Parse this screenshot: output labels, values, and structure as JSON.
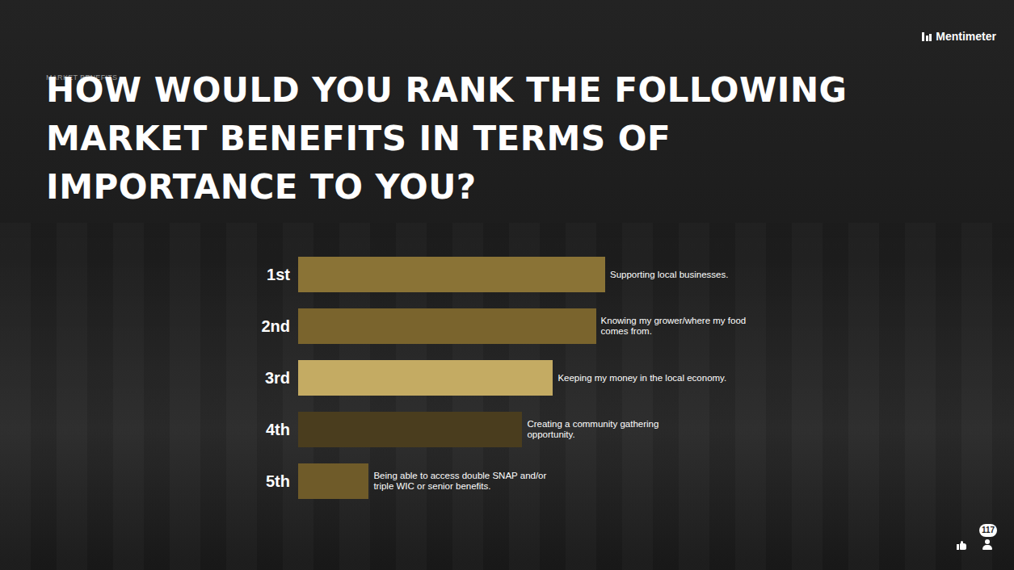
{
  "chart_data": {
    "type": "bar",
    "orientation": "horizontal",
    "title": "HOW WOULD YOU RANK THE FOLLOWING MARKET BENEFITS IN TERMS OF IMPORTANCE TO YOU?",
    "categories": [
      "1st",
      "2nd",
      "3rd",
      "4th",
      "5th"
    ],
    "item_labels": [
      "Supporting local businesses.",
      "Knowing my grower/where my food comes from.",
      "Keeping my money in the local economy.",
      "Creating a community gathering opportunity.",
      "Being able to access double SNAP and/or triple WIC or senior benefits."
    ],
    "values": [
      100,
      97,
      83,
      73,
      23
    ],
    "colors": [
      "#8a7336",
      "#7a642d",
      "#c4ab63",
      "#4a3d1e",
      "#6f5b29"
    ],
    "xlim": [
      0,
      100
    ],
    "tick_labels": false,
    "grid": false
  },
  "header": {
    "section": "MARKET BENEFITS",
    "brand": "Mentimeter"
  },
  "footer": {
    "participants": 117
  }
}
